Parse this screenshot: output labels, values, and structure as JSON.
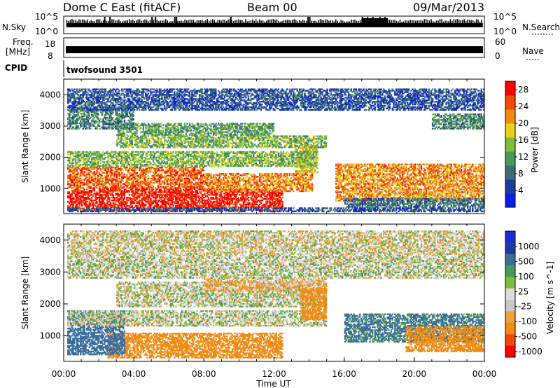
{
  "header": {
    "station": "Dome C East (fitACF)",
    "beam": "Beam 00",
    "date": "09/Mar/2013"
  },
  "panels": {
    "nsky": {
      "left_label": "N.Sky",
      "left_ticks": [
        "10^5",
        "10^0"
      ],
      "right_ticks": [
        "10^5",
        "10^0"
      ],
      "right_label": "N.Search"
    },
    "freq": {
      "left_label_1": "Freq.",
      "left_label_2": "[MHz]",
      "left_ticks": [
        "18",
        "8"
      ],
      "right_ticks": [
        "60",
        "0"
      ],
      "right_label": "Nave"
    },
    "cpid": {
      "label": "CPID",
      "value": "twofsound 3501"
    }
  },
  "colors": {
    "power_scale": [
      "#0a1ee6",
      "#1e3c9c",
      "#3c6e7a",
      "#4a9a5a",
      "#7cbe3c",
      "#e6d21e",
      "#f08c14",
      "#f04a0a",
      "#ff0000"
    ],
    "velocity_scale": [
      "#ff0000",
      "#f04a0a",
      "#f08c14",
      "#f0a03c",
      "#c8c8c8",
      "#dcdcdc",
      "#7cbe3c",
      "#4a9a5a",
      "#3c6e9c",
      "#1e3ca0",
      "#1e2ad2"
    ]
  },
  "chart_data": [
    {
      "type": "line",
      "name": "N.Sky / N.Search",
      "x_range_hours": [
        0,
        24
      ],
      "ylabel": "N.Sky",
      "y2label": "N.Search",
      "description_values": "noise level near 10^0 with spikes near 10^5 around 02:00, 05:00, 06:00, 14:00, 17:00-18:00"
    },
    {
      "type": "line",
      "name": "Freq / Nave",
      "x_range_hours": [
        0,
        24
      ],
      "ylabel": "Freq. [MHz]",
      "ylim": [
        8,
        18
      ],
      "y2label": "Nave",
      "y2lim": [
        0,
        60
      ]
    },
    {
      "type": "heatmap",
      "xlabel": "",
      "ylabel": "Slant Range [km]",
      "x_range_hours": [
        0,
        24
      ],
      "ylim": [
        200,
        4500
      ],
      "yticks": [
        "1000",
        "2000",
        "3000",
        "4000"
      ],
      "colorbar_label": "Power [dB]",
      "colorbar_ticks": [
        "4",
        "8",
        "12",
        "16",
        "20",
        "24",
        "28"
      ],
      "colorbar_range": [
        0,
        30
      ],
      "bands": [
        {
          "x": [
            0.2,
            12.5
          ],
          "y": [
            300,
            1000
          ],
          "value": 28
        },
        {
          "x": [
            0.2,
            8.0
          ],
          "y": [
            1000,
            1700
          ],
          "value": 24
        },
        {
          "x": [
            8.0,
            14.2
          ],
          "y": [
            900,
            1500
          ],
          "value": 22
        },
        {
          "x": [
            13.2,
            14.5
          ],
          "y": [
            1500,
            2400
          ],
          "value": 18
        },
        {
          "x": [
            0.2,
            14.5
          ],
          "y": [
            1700,
            2200
          ],
          "value": 14
        },
        {
          "x": [
            3.0,
            15.0
          ],
          "y": [
            2300,
            2700
          ],
          "value": 14
        },
        {
          "x": [
            3.0,
            12.0
          ],
          "y": [
            2700,
            3100
          ],
          "value": 12
        },
        {
          "x": [
            0.2,
            24.0
          ],
          "y": [
            250,
            400
          ],
          "value": 6
        },
        {
          "x": [
            15.5,
            24.0
          ],
          "y": [
            600,
            1800
          ],
          "value": 22
        },
        {
          "x": [
            16.0,
            24.0
          ],
          "y": [
            400,
            700
          ],
          "value": 8
        },
        {
          "x": [
            0.2,
            4.0
          ],
          "y": [
            2900,
            3600
          ],
          "value": 10
        },
        {
          "x": [
            21.0,
            24.0
          ],
          "y": [
            2900,
            3400
          ],
          "value": 10
        },
        {
          "x": [
            0.2,
            24.0
          ],
          "y": [
            3500,
            4200
          ],
          "value": 6
        }
      ]
    },
    {
      "type": "heatmap",
      "xlabel": "Time UT",
      "ylabel": "Slant Range [km]",
      "x_range_hours": [
        0,
        24
      ],
      "xticks": [
        "00:00",
        "04:00",
        "08:00",
        "12:00",
        "16:00",
        "20:00",
        "00:00"
      ],
      "ylim": [
        200,
        4500
      ],
      "yticks": [
        "1000",
        "2000",
        "3000",
        "4000"
      ],
      "colorbar_label": "Velocity [m s^-1]",
      "colorbar_ticks": [
        "1000",
        "500",
        "100",
        "25",
        "-25",
        "-100",
        "-500",
        "-1000"
      ],
      "bands": [
        {
          "x": [
            2.5,
            12.5
          ],
          "y": [
            300,
            1100
          ],
          "value": -400
        },
        {
          "x": [
            0.2,
            3.5
          ],
          "y": [
            400,
            1800
          ],
          "value": 200
        },
        {
          "x": [
            0.2,
            15.0
          ],
          "y": [
            1300,
            1800
          ],
          "value": 0
        },
        {
          "x": [
            3.0,
            15.0
          ],
          "y": [
            1900,
            2700
          ],
          "value": 0
        },
        {
          "x": [
            8.0,
            15.0
          ],
          "y": [
            2400,
            2800
          ],
          "value": -80
        },
        {
          "x": [
            13.5,
            15.0
          ],
          "y": [
            1500,
            2500
          ],
          "value": -300
        },
        {
          "x": [
            16.0,
            24.0
          ],
          "y": [
            800,
            1700
          ],
          "value": 150
        },
        {
          "x": [
            19.5,
            24.0
          ],
          "y": [
            500,
            1300
          ],
          "value": -400
        },
        {
          "x": [
            0.2,
            24.0
          ],
          "y": [
            2800,
            3500
          ],
          "value": 0
        },
        {
          "x": [
            0.2,
            24.0
          ],
          "y": [
            3500,
            4300
          ],
          "value": -20
        }
      ]
    }
  ]
}
